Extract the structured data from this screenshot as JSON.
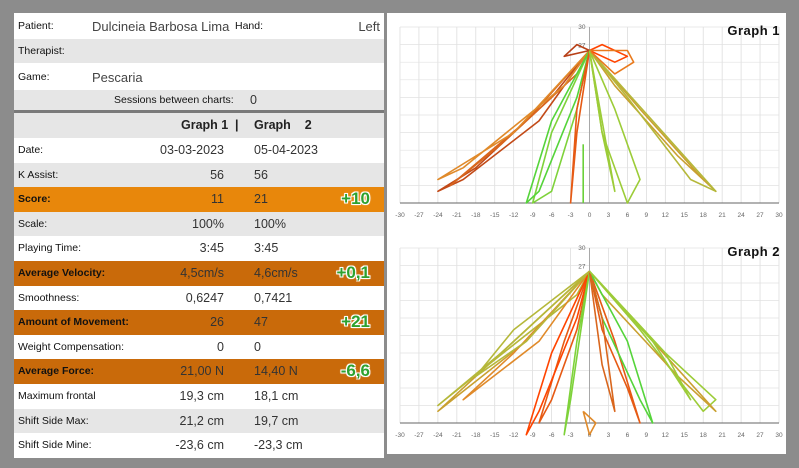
{
  "header": {
    "patient_label": "Patient:",
    "patient_value": "Dulcineia Barbosa Lima",
    "hand_label": "Hand:",
    "hand_value": "Left",
    "therapist_label": "Therapist:",
    "therapist_value": "",
    "game_label": "Game:",
    "game_value": "Pescaria",
    "sessions_label": "Sessions between charts:",
    "sessions_value": "0"
  },
  "columns": {
    "graph1": "Graph 1",
    "divider": "|",
    "graph2": "Graph    2"
  },
  "metrics": [
    {
      "label": "Date:",
      "v1": "03-03-2023",
      "v2": "05-04-2023",
      "delta": "",
      "style": "white"
    },
    {
      "label": "K Assist:",
      "v1": "56",
      "v2": "56",
      "delta": "",
      "style": "alt"
    },
    {
      "label": "Score:",
      "v1": "11",
      "v2": "21",
      "delta": "+10",
      "style": "orange"
    },
    {
      "label": "Scale:",
      "v1": "100%",
      "v2": "100%",
      "delta": "",
      "style": "alt"
    },
    {
      "label": "Playing Time:",
      "v1": "3:45",
      "v2": "3:45",
      "delta": "",
      "style": "white"
    },
    {
      "label": "Average Velocity:",
      "v1": "4,5cm/s",
      "v2": "4,6cm/s",
      "delta": "+0,1",
      "style": "dorange"
    },
    {
      "label": "Smoothness:",
      "v1": "0,6247",
      "v2": "0,7421",
      "delta": "",
      "style": "white"
    },
    {
      "label": "Amount of Movement:",
      "v1": "26",
      "v2": "47",
      "delta": "+21",
      "style": "dorange"
    },
    {
      "label": "Weight Compensation:",
      "v1": "0",
      "v2": "0",
      "delta": "",
      "style": "white"
    },
    {
      "label": "Average Force:",
      "v1": "21,00 N",
      "v2": "14,40 N",
      "delta": "-6,6",
      "style": "dorange"
    },
    {
      "label": "Maximum frontal",
      "v1": "19,3 cm",
      "v2": "18,1 cm",
      "delta": "",
      "style": "white"
    },
    {
      "label": "Shift Side Max:",
      "v1": "21,2 cm",
      "v2": "19,7 cm",
      "delta": "",
      "style": "alt"
    },
    {
      "label": "Shift Side Mine:",
      "v1": "-23,6 cm",
      "v2": "-23,3 cm",
      "delta": "",
      "style": "white"
    }
  ],
  "colors": {
    "score_row": "#e8870b",
    "highlight_row": "#c96a0a",
    "delta_text": "#2ea12e"
  },
  "graphs": [
    {
      "title": "Graph   1",
      "x_ticks": [
        "-30",
        "-27",
        "-24",
        "-21",
        "-18",
        "-15",
        "-12",
        "-9",
        "-6",
        "-3",
        "0",
        "3",
        "6",
        "9",
        "12",
        "15",
        "18",
        "21",
        "24",
        "27",
        "30"
      ],
      "y_top_label": "30",
      "y_mid_label": "27"
    },
    {
      "title": "Graph   2",
      "x_ticks": [
        "-30",
        "-27",
        "-24",
        "-21",
        "-18",
        "-15",
        "-12",
        "-9",
        "-6",
        "-3",
        "0",
        "3",
        "6",
        "9",
        "12",
        "15",
        "18",
        "21",
        "24",
        "27",
        "30"
      ],
      "y_top_label": "30",
      "y_mid_label": "27"
    }
  ]
}
